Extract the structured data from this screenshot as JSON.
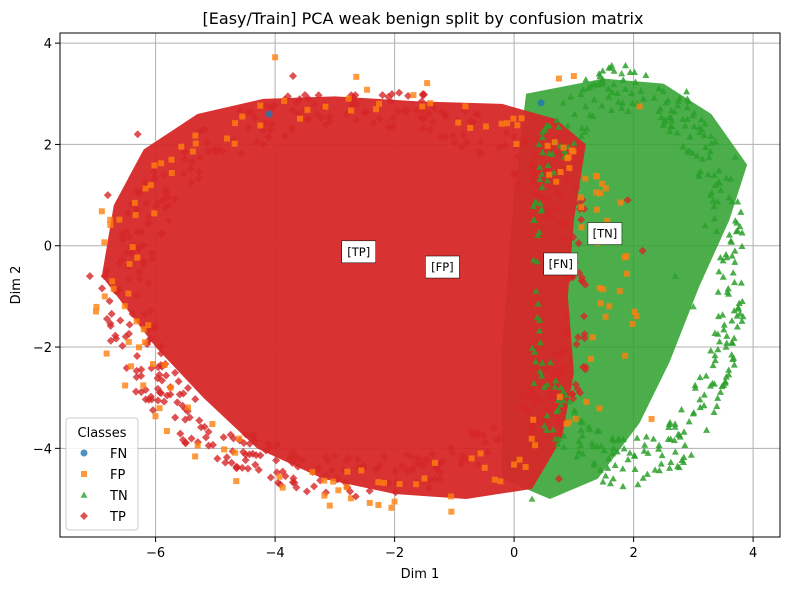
{
  "chart_data": {
    "type": "scatter",
    "title": "[Easy/Train] PCA weak benign split by confusion matrix",
    "xlabel": "Dim 1",
    "ylabel": "Dim 2",
    "xlim": [
      -7.6,
      4.45
    ],
    "ylim": [
      -5.75,
      4.2
    ],
    "xticks": [
      -6,
      -4,
      -2,
      0,
      2,
      4
    ],
    "yticks": [
      -4,
      -2,
      0,
      2,
      4
    ],
    "xtick_labels": [
      "−6",
      "−4",
      "−2",
      "0",
      "2",
      "4"
    ],
    "ytick_labels": [
      "−4",
      "−2",
      "0",
      "2",
      "4"
    ],
    "grid": true,
    "legend": {
      "title": "Classes",
      "placement": "lower-left",
      "entries": [
        "FN",
        "FP",
        "TN",
        "TP"
      ]
    },
    "series": [
      {
        "name": "FN",
        "marker": "circle",
        "color": "#1f77b4",
        "points": [
          [
            0.45,
            2.82
          ],
          [
            -4.1,
            2.6
          ]
        ]
      },
      {
        "name": "FP",
        "marker": "square",
        "color": "#ff7f0e",
        "points": [
          [
            -4.0,
            3.72
          ],
          [
            -6.9,
            0.68
          ],
          [
            -6.85,
            -1.0
          ],
          [
            -5.05,
            -3.52
          ],
          [
            0.75,
            3.3
          ],
          [
            1.0,
            3.35
          ],
          [
            -1.05,
            -5.25
          ],
          [
            2.3,
            -3.42
          ],
          [
            2.1,
            2.75
          ],
          [
            -6.2,
            -1.65
          ]
        ]
      },
      {
        "name": "TN",
        "marker": "triangle",
        "color": "#2ca02c",
        "points": [
          [
            3.7,
            1.75
          ],
          [
            2.7,
            -0.6
          ],
          [
            3.2,
            0.4
          ],
          [
            2.9,
            2.9
          ],
          [
            0.3,
            -5.0
          ],
          [
            1.8,
            3.4
          ],
          [
            3.0,
            -1.2
          ]
        ]
      },
      {
        "name": "TP",
        "marker": "diamond",
        "color": "#d62728",
        "points": [
          [
            -7.1,
            -0.6
          ],
          [
            -6.8,
            1.0
          ],
          [
            -3.7,
            3.35
          ],
          [
            -2.65,
            -4.95
          ],
          [
            0.75,
            -4.6
          ],
          [
            -5.5,
            -3.9
          ],
          [
            1.9,
            0.9
          ],
          [
            2.15,
            -0.1
          ],
          [
            -6.3,
            2.2
          ]
        ]
      }
    ],
    "annotations": [
      {
        "text": "[TP]",
        "x": -2.6,
        "y": -0.12
      },
      {
        "text": "[FP]",
        "x": -1.2,
        "y": -0.42
      },
      {
        "text": "[FN]",
        "x": 0.78,
        "y": -0.36
      },
      {
        "text": "[TN]",
        "x": 1.52,
        "y": 0.24
      }
    ]
  }
}
